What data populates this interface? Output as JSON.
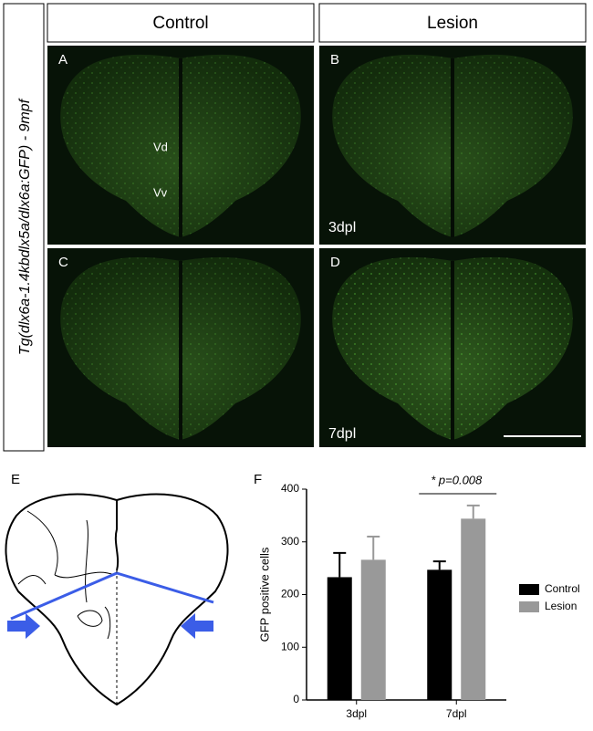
{
  "figure": {
    "side_label": "Tg(dlx6a-1.4kbdlx5a/dlx6a:GFP) - 9mpf",
    "columns": [
      "Control",
      "Lesion"
    ],
    "panel_labels": [
      "A",
      "B",
      "C",
      "D",
      "E",
      "F"
    ],
    "region_labels": [
      "Vd",
      "Vv"
    ],
    "time_labels": [
      "3dpl",
      "7dpl"
    ]
  },
  "chart_data": {
    "type": "bar",
    "categories": [
      "3dpl",
      "7dpl"
    ],
    "series": [
      {
        "name": "Control",
        "color": "#000000",
        "values": [
          233,
          247
        ],
        "errors": [
          46,
          16
        ]
      },
      {
        "name": "Lesion",
        "color": "#999999",
        "values": [
          266,
          344
        ],
        "errors": [
          44,
          25
        ]
      }
    ],
    "y_label": "GFP positive cells",
    "annotation": "* p=0.008",
    "ylim": [
      0,
      400
    ],
    "yticks": [
      0,
      100,
      200,
      300,
      400
    ]
  }
}
